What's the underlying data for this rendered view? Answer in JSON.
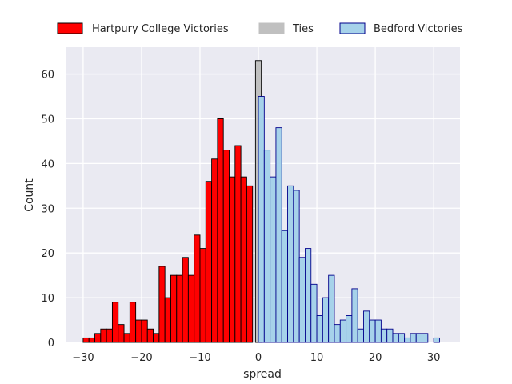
{
  "chart_data": {
    "type": "bar",
    "subtype": "histogram",
    "title": "",
    "xlabel": "spread",
    "ylabel": "Count",
    "xlim": [
      -33,
      34.5
    ],
    "ylim": [
      0,
      66
    ],
    "bin_width": 1,
    "grid": true,
    "legend_position": "top",
    "x_ticks": [
      -30,
      -20,
      -10,
      0,
      10,
      20,
      30
    ],
    "y_ticks": [
      0,
      10,
      20,
      30,
      40,
      50,
      60
    ],
    "series": [
      {
        "name": "Hartpury College Victories",
        "color": "#ff0000",
        "edge": "#000000",
        "x": [
          -30,
          -29,
          -28,
          -27,
          -26,
          -25,
          -24,
          -23,
          -22,
          -21,
          -20,
          -19,
          -18,
          -17,
          -16,
          -15,
          -14,
          -13,
          -12,
          -11,
          -10,
          -9,
          -8,
          -7,
          -6,
          -5,
          -4,
          -3,
          -2,
          -1
        ],
        "values": [
          1,
          1,
          2,
          3,
          3,
          9,
          4,
          2,
          9,
          5,
          5,
          3,
          2,
          17,
          10,
          15,
          15,
          19,
          15,
          24,
          21,
          36,
          41,
          50,
          43,
          37,
          44,
          37,
          35,
          0
        ]
      },
      {
        "name": "Ties",
        "color": "#c0c0c0",
        "edge": "#000000",
        "x": [
          -0.5
        ],
        "values": [
          63
        ]
      },
      {
        "name": "Bedford Victories",
        "color": "#a6d2ea",
        "edge": "#00008b",
        "x": [
          0,
          1,
          2,
          3,
          4,
          5,
          6,
          7,
          8,
          9,
          10,
          11,
          12,
          13,
          14,
          15,
          16,
          17,
          18,
          19,
          20,
          21,
          22,
          23,
          24,
          25,
          26,
          27,
          28,
          29,
          30,
          31
        ],
        "values": [
          55,
          43,
          37,
          48,
          25,
          35,
          34,
          19,
          21,
          13,
          6,
          10,
          15,
          4,
          5,
          6,
          12,
          3,
          7,
          5,
          5,
          3,
          3,
          2,
          2,
          1,
          2,
          2,
          2,
          0,
          1,
          0
        ]
      }
    ]
  }
}
